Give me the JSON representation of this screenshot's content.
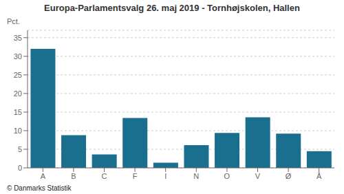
{
  "chart_data": {
    "type": "bar",
    "title": "Europa-Parlamentsvalg 26. maj 2019 - Tornhøjskolen, Hallen",
    "categories": [
      "A",
      "B",
      "C",
      "F",
      "I",
      "N",
      "O",
      "V",
      "Ø",
      "Å"
    ],
    "values": [
      32.0,
      8.8,
      3.6,
      13.4,
      1.4,
      6.1,
      9.4,
      13.6,
      9.2,
      4.5
    ],
    "color": "#1a6e8e",
    "ylabel": "Pct.",
    "ylim": [
      0,
      37
    ],
    "yticks": [
      0,
      5,
      10,
      15,
      20,
      25,
      30,
      35
    ],
    "grid": true,
    "annotations": [
      "© Danmarks Statistik"
    ]
  }
}
